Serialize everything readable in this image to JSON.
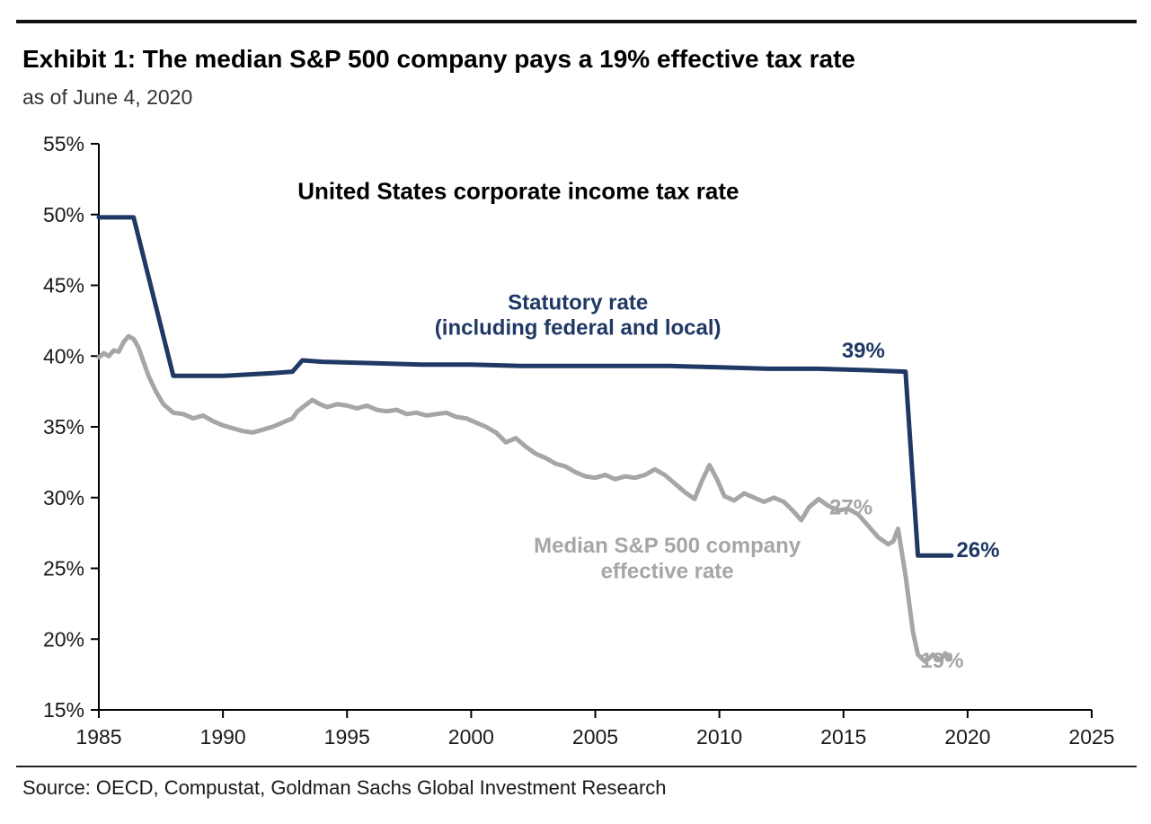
{
  "page": {
    "title": "Exhibit 1: The median S&P 500 company pays a 19% effective tax rate",
    "subtitle": "as of June 4, 2020",
    "source": "Source: OECD, Compustat, Goldman Sachs Global Investment Research"
  },
  "chart_data": {
    "type": "line",
    "title": "Exhibit 1: The median S&P 500 company pays a 19% effective tax rate",
    "subtitle": "as of June 4, 2020",
    "inner_title": "United States corporate income tax rate",
    "xlabel": "",
    "ylabel": "",
    "xlim": [
      1985,
      2025
    ],
    "ylim": [
      15,
      55
    ],
    "x_ticks": [
      1985,
      1990,
      1995,
      2000,
      2005,
      2010,
      2015,
      2020,
      2025
    ],
    "y_ticks": [
      15,
      20,
      25,
      30,
      35,
      40,
      45,
      50,
      55
    ],
    "y_tick_suffix": "%",
    "grid": false,
    "legend": "inline-labels",
    "axis_color": "#000000",
    "tick_color": "#1a1a1a",
    "source": "Source: OECD, Compustat, Goldman Sachs Global Investment Research",
    "series": [
      {
        "name": "Statutory rate (including federal and local)",
        "color": "#1f3864",
        "width": 5,
        "end_value_label": "26%",
        "points": [
          [
            1985.0,
            49.8
          ],
          [
            1986.4,
            49.8
          ],
          [
            1988.0,
            38.6
          ],
          [
            1990.0,
            38.6
          ],
          [
            1992.0,
            38.8
          ],
          [
            1992.8,
            38.9
          ],
          [
            1993.2,
            39.7
          ],
          [
            1994.0,
            39.6
          ],
          [
            1996.0,
            39.5
          ],
          [
            1998.0,
            39.4
          ],
          [
            2000.0,
            39.4
          ],
          [
            2002.0,
            39.3
          ],
          [
            2004.0,
            39.3
          ],
          [
            2006.0,
            39.3
          ],
          [
            2008.0,
            39.3
          ],
          [
            2010.0,
            39.2
          ],
          [
            2012.0,
            39.1
          ],
          [
            2014.0,
            39.1
          ],
          [
            2016.0,
            39.0
          ],
          [
            2017.5,
            38.9
          ],
          [
            2018.0,
            25.9
          ],
          [
            2019.35,
            25.9
          ]
        ]
      },
      {
        "name": "Median S&P 500 company effective rate",
        "color": "#a6a6a6",
        "width": 5,
        "end_value_label": "19%",
        "points": [
          [
            1985.0,
            39.9
          ],
          [
            1985.2,
            40.2
          ],
          [
            1985.4,
            40.0
          ],
          [
            1985.6,
            40.4
          ],
          [
            1985.8,
            40.3
          ],
          [
            1986.0,
            41.0
          ],
          [
            1986.2,
            41.4
          ],
          [
            1986.4,
            41.2
          ],
          [
            1986.6,
            40.6
          ],
          [
            1986.8,
            39.6
          ],
          [
            1987.0,
            38.6
          ],
          [
            1987.3,
            37.5
          ],
          [
            1987.6,
            36.6
          ],
          [
            1988.0,
            36.0
          ],
          [
            1988.4,
            35.9
          ],
          [
            1988.8,
            35.6
          ],
          [
            1989.2,
            35.8
          ],
          [
            1989.6,
            35.4
          ],
          [
            1990.0,
            35.1
          ],
          [
            1990.4,
            34.9
          ],
          [
            1990.8,
            34.7
          ],
          [
            1991.2,
            34.6
          ],
          [
            1991.6,
            34.8
          ],
          [
            1992.0,
            35.0
          ],
          [
            1992.4,
            35.3
          ],
          [
            1992.8,
            35.6
          ],
          [
            1993.0,
            36.1
          ],
          [
            1993.3,
            36.5
          ],
          [
            1993.6,
            36.9
          ],
          [
            1993.9,
            36.6
          ],
          [
            1994.2,
            36.4
          ],
          [
            1994.6,
            36.6
          ],
          [
            1995.0,
            36.5
          ],
          [
            1995.4,
            36.3
          ],
          [
            1995.8,
            36.5
          ],
          [
            1996.2,
            36.2
          ],
          [
            1996.6,
            36.1
          ],
          [
            1997.0,
            36.2
          ],
          [
            1997.4,
            35.9
          ],
          [
            1997.8,
            36.0
          ],
          [
            1998.2,
            35.8
          ],
          [
            1998.6,
            35.9
          ],
          [
            1999.0,
            36.0
          ],
          [
            1999.4,
            35.7
          ],
          [
            1999.8,
            35.6
          ],
          [
            2000.2,
            35.3
          ],
          [
            2000.6,
            35.0
          ],
          [
            2001.0,
            34.6
          ],
          [
            2001.4,
            33.9
          ],
          [
            2001.8,
            34.2
          ],
          [
            2002.2,
            33.6
          ],
          [
            2002.6,
            33.1
          ],
          [
            2003.0,
            32.8
          ],
          [
            2003.4,
            32.4
          ],
          [
            2003.8,
            32.2
          ],
          [
            2004.2,
            31.8
          ],
          [
            2004.6,
            31.5
          ],
          [
            2005.0,
            31.4
          ],
          [
            2005.4,
            31.6
          ],
          [
            2005.8,
            31.3
          ],
          [
            2006.2,
            31.5
          ],
          [
            2006.6,
            31.4
          ],
          [
            2007.0,
            31.6
          ],
          [
            2007.4,
            32.0
          ],
          [
            2007.8,
            31.6
          ],
          [
            2008.2,
            31.0
          ],
          [
            2008.6,
            30.4
          ],
          [
            2009.0,
            29.9
          ],
          [
            2009.3,
            31.2
          ],
          [
            2009.6,
            32.3
          ],
          [
            2009.9,
            31.3
          ],
          [
            2010.2,
            30.1
          ],
          [
            2010.6,
            29.8
          ],
          [
            2011.0,
            30.3
          ],
          [
            2011.4,
            30.0
          ],
          [
            2011.8,
            29.7
          ],
          [
            2012.2,
            30.0
          ],
          [
            2012.6,
            29.7
          ],
          [
            2013.0,
            29.0
          ],
          [
            2013.3,
            28.4
          ],
          [
            2013.6,
            29.3
          ],
          [
            2014.0,
            29.9
          ],
          [
            2014.4,
            29.4
          ],
          [
            2014.8,
            29.1
          ],
          [
            2015.2,
            29.2
          ],
          [
            2015.6,
            28.8
          ],
          [
            2016.0,
            28.0
          ],
          [
            2016.4,
            27.2
          ],
          [
            2016.8,
            26.7
          ],
          [
            2017.0,
            26.9
          ],
          [
            2017.2,
            27.8
          ],
          [
            2017.5,
            24.5
          ],
          [
            2017.8,
            20.5
          ],
          [
            2018.0,
            18.9
          ],
          [
            2018.3,
            18.4
          ],
          [
            2018.6,
            18.9
          ],
          [
            2018.9,
            18.5
          ],
          [
            2019.1,
            19.0
          ],
          [
            2019.3,
            18.6
          ]
        ]
      }
    ],
    "annotations": [
      {
        "lines": [
          "United States corporate income tax rate"
        ],
        "x": 2001.9,
        "y": 51.1,
        "color": "#000000",
        "size": 26,
        "weight": "bold",
        "anchor": "middle"
      },
      {
        "lines": [
          "Statutory rate",
          "(including federal and local)"
        ],
        "x": 2004.3,
        "y": 43.3,
        "color": "#1f3864",
        "size": 24,
        "weight": "bold",
        "anchor": "middle"
      },
      {
        "lines": [
          "Median S&P 500 company",
          "effective rate"
        ],
        "x": 2007.9,
        "y": 26.1,
        "color": "#a6a6a6",
        "size": 24,
        "weight": "bold",
        "anchor": "middle"
      },
      {
        "lines": [
          "39%"
        ],
        "x": 2015.8,
        "y": 39.9,
        "color": "#1f3864",
        "size": 24,
        "weight": "bold",
        "anchor": "middle"
      },
      {
        "lines": [
          "26%"
        ],
        "x": 2019.55,
        "y": 25.8,
        "color": "#1f3864",
        "size": 24,
        "weight": "bold",
        "anchor": "start"
      },
      {
        "lines": [
          "27%"
        ],
        "x": 2015.3,
        "y": 28.8,
        "color": "#a6a6a6",
        "size": 24,
        "weight": "bold",
        "anchor": "middle"
      },
      {
        "lines": [
          "19%"
        ],
        "x": 2018.1,
        "y": 18.0,
        "color": "#a6a6a6",
        "size": 24,
        "weight": "bold",
        "anchor": "start"
      }
    ]
  }
}
